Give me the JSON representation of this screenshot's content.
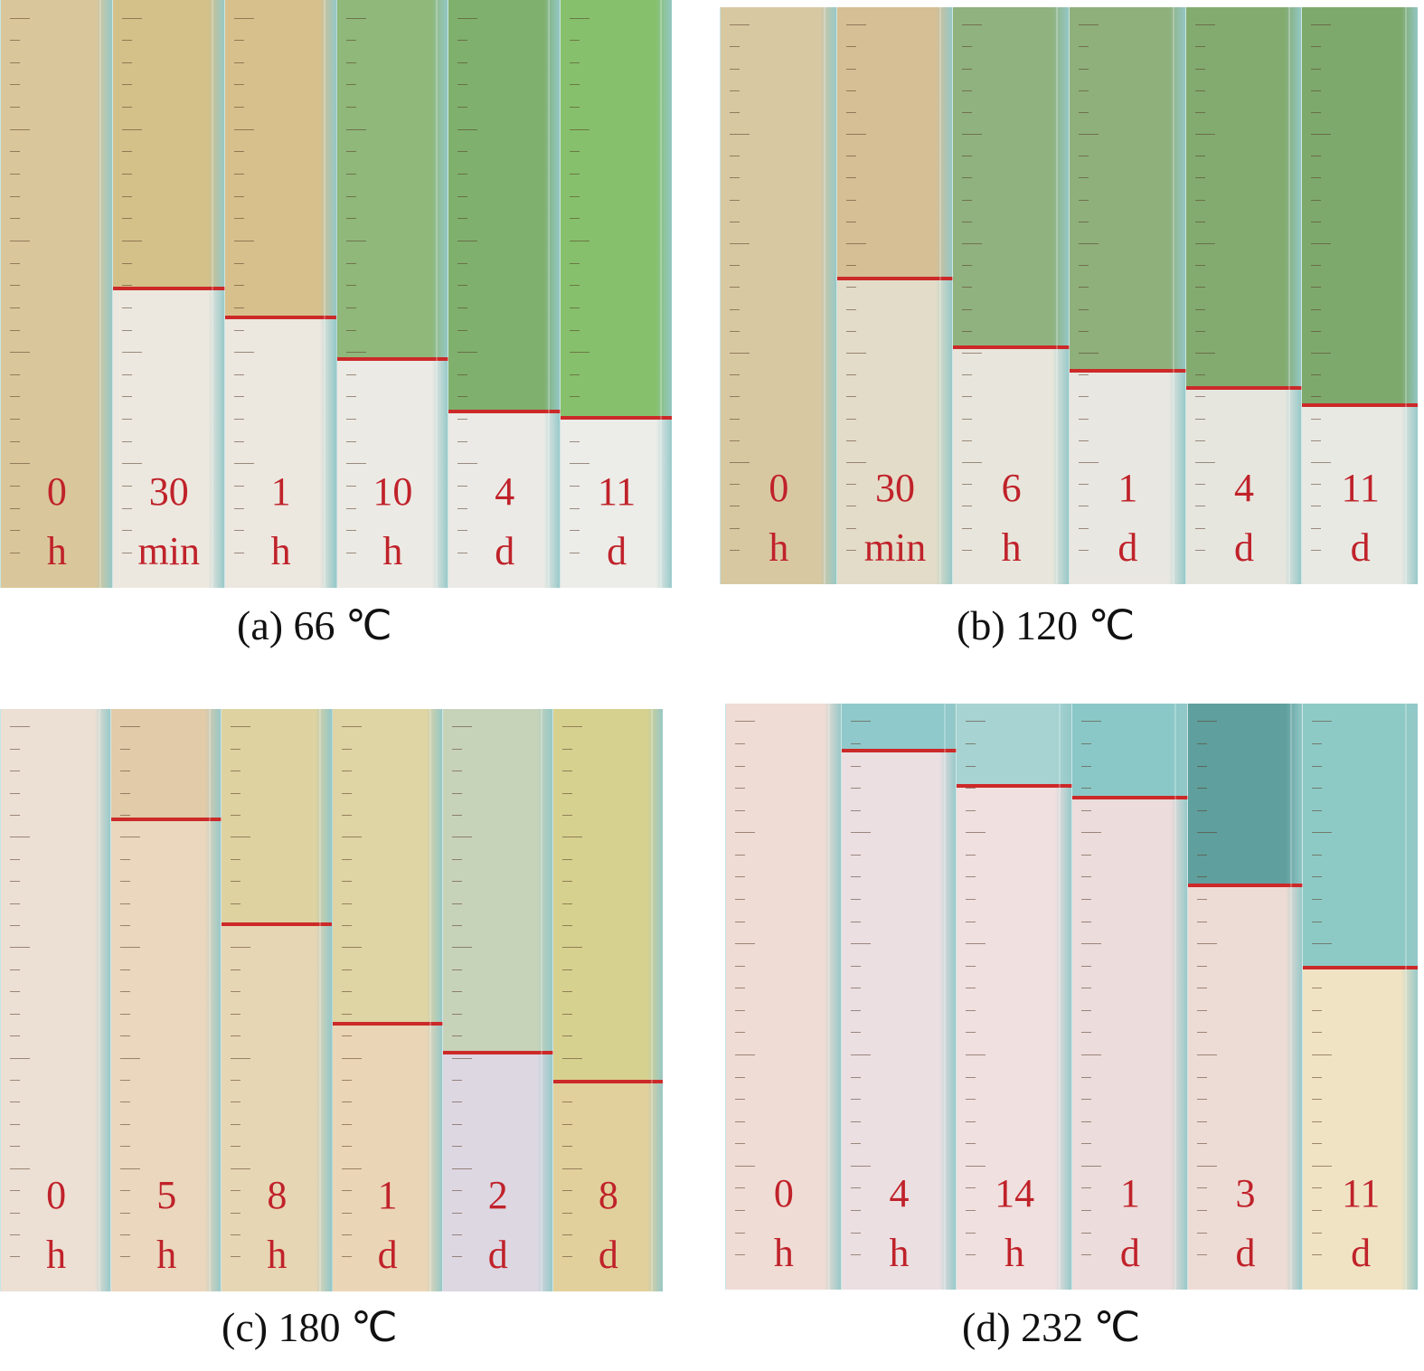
{
  "panels": [
    {
      "id": "a",
      "caption": "(a) 66 ℃",
      "tubes": [
        {
          "time": "0",
          "unit": "h",
          "top_color": "#d9c79b",
          "bottom_color": "#d9c79b",
          "separation_fraction": null
        },
        {
          "time": "30",
          "unit": "min",
          "top_color": "#d4c089",
          "bottom_color": "#ece8df",
          "separation_fraction": 0.49
        },
        {
          "time": "1",
          "unit": "h",
          "top_color": "#d8c08c",
          "bottom_color": "#ece7df",
          "separation_fraction": 0.54
        },
        {
          "time": "10",
          "unit": "h",
          "top_color": "#8fb87a",
          "bottom_color": "#eceae4",
          "separation_fraction": 0.61
        },
        {
          "time": "4",
          "unit": "d",
          "top_color": "#7fb06e",
          "bottom_color": "#ebeae6",
          "separation_fraction": 0.7
        },
        {
          "time": "11",
          "unit": "d",
          "top_color": "#86c06c",
          "bottom_color": "#ecece8",
          "separation_fraction": 0.71
        }
      ]
    },
    {
      "id": "b",
      "caption": "(b) 120 ℃",
      "tubes": [
        {
          "time": "0",
          "unit": "h",
          "top_color": "#d8c8a2",
          "bottom_color": "#d8c8a2",
          "separation_fraction": null
        },
        {
          "time": "30",
          "unit": "min",
          "top_color": "#d6bf95",
          "bottom_color": "#e3dcc8",
          "separation_fraction": 0.47
        },
        {
          "time": "6",
          "unit": "h",
          "top_color": "#90b27e",
          "bottom_color": "#e8e6dc",
          "separation_fraction": 0.59
        },
        {
          "time": "1",
          "unit": "d",
          "top_color": "#8fb07b",
          "bottom_color": "#e9e7e1",
          "separation_fraction": 0.63
        },
        {
          "time": "4",
          "unit": "d",
          "top_color": "#83ab6f",
          "bottom_color": "#e6e6df",
          "separation_fraction": 0.66
        },
        {
          "time": "11",
          "unit": "d",
          "top_color": "#7ea96c",
          "bottom_color": "#e9e9e4",
          "separation_fraction": 0.69
        }
      ]
    },
    {
      "id": "c",
      "caption": "(c) 180 ℃",
      "tubes": [
        {
          "time": "0",
          "unit": "h",
          "top_color": "#ecdfd4",
          "bottom_color": "#ecdfd4",
          "separation_fraction": null
        },
        {
          "time": "5",
          "unit": "h",
          "top_color": "#e2cba9",
          "bottom_color": "#ead7bd",
          "separation_fraction": 0.19
        },
        {
          "time": "8",
          "unit": "h",
          "top_color": "#ddd2a0",
          "bottom_color": "#e7d6b3",
          "separation_fraction": 0.37
        },
        {
          "time": "1",
          "unit": "d",
          "top_color": "#dfd4a3",
          "bottom_color": "#ead6b6",
          "separation_fraction": 0.54
        },
        {
          "time": "2",
          "unit": "d",
          "top_color": "#c7d3b9",
          "bottom_color": "#ddd7e2",
          "separation_fraction": 0.59
        },
        {
          "time": "8",
          "unit": "d",
          "top_color": "#d7d18f",
          "bottom_color": "#e1d09c",
          "separation_fraction": 0.64
        }
      ]
    },
    {
      "id": "d",
      "caption": "(d) 232 ℃",
      "tubes": [
        {
          "time": "0",
          "unit": "h",
          "top_color": "#efdcd5",
          "bottom_color": "#efdcd5",
          "separation_fraction": null
        },
        {
          "time": "4",
          "unit": "h",
          "top_color": "#8fc9cb",
          "bottom_color": "#ebdfe2",
          "separation_fraction": 0.08
        },
        {
          "time": "14",
          "unit": "h",
          "top_color": "#a7d3d2",
          "bottom_color": "#f0e0df",
          "separation_fraction": 0.14
        },
        {
          "time": "1",
          "unit": "d",
          "top_color": "#8ac8c7",
          "bottom_color": "#ecdcdb",
          "separation_fraction": 0.16
        },
        {
          "time": "3",
          "unit": "d",
          "top_color": "#5f9f9d",
          "bottom_color": "#eddcd5",
          "separation_fraction": 0.31
        },
        {
          "time": "11",
          "unit": "d",
          "top_color": "#8ecac5",
          "bottom_color": "#f0e3c4",
          "separation_fraction": 0.45
        }
      ]
    }
  ]
}
